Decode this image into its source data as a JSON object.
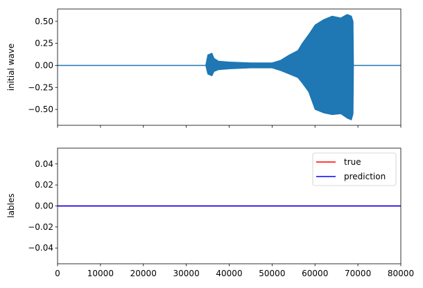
{
  "chart_data": [
    {
      "type": "line",
      "ylabel": "initial wave",
      "xlabel": "",
      "xlim": [
        0,
        80000
      ],
      "ylim": [
        -0.68,
        0.64
      ],
      "yticks": [
        0.5,
        0.25,
        0.0,
        -0.25,
        -0.5
      ],
      "ytick_labels": [
        "0.50",
        "0.25",
        "0.00",
        "−0.25",
        "−0.50"
      ],
      "show_xtick_labels": false,
      "grid": false,
      "series": [
        {
          "color": "#1f77b4",
          "envelope": {
            "x": [
              0,
              34500,
              35000,
              36000,
              36500,
              37500,
              40000,
              45000,
              50000,
              52000,
              54000,
              56000,
              57000,
              58500,
              60000,
              62000,
              64000,
              66000,
              67500,
              68500,
              68900,
              69000,
              80000
            ],
            "ymax": [
              0.0,
              0.0,
              0.12,
              0.14,
              0.08,
              0.05,
              0.04,
              0.03,
              0.03,
              0.06,
              0.12,
              0.17,
              0.25,
              0.35,
              0.46,
              0.52,
              0.56,
              0.54,
              0.58,
              0.56,
              0.5,
              0.0,
              0.0
            ],
            "ymin": [
              0.0,
              0.0,
              -0.1,
              -0.12,
              -0.07,
              -0.05,
              -0.04,
              -0.03,
              -0.03,
              -0.06,
              -0.1,
              -0.14,
              -0.2,
              -0.3,
              -0.5,
              -0.54,
              -0.56,
              -0.55,
              -0.6,
              -0.62,
              -0.55,
              0.0,
              0.0
            ]
          }
        }
      ]
    },
    {
      "type": "line",
      "ylabel": "lables",
      "xlabel": "",
      "xlim": [
        0,
        80000
      ],
      "ylim": [
        -0.055,
        0.055
      ],
      "xticks": [
        0,
        10000,
        20000,
        30000,
        40000,
        50000,
        60000,
        70000,
        80000
      ],
      "xtick_labels": [
        "0",
        "10000",
        "20000",
        "30000",
        "40000",
        "50000",
        "60000",
        "70000",
        "80000"
      ],
      "yticks": [
        0.04,
        0.02,
        0.0,
        -0.02,
        -0.04
      ],
      "ytick_labels": [
        "0.04",
        "0.02",
        "0.00",
        "−0.02",
        "−0.04"
      ],
      "grid": false,
      "legend_position": "top-right",
      "series": [
        {
          "name": "true",
          "color": "#ff0000",
          "x": [
            0,
            80000
          ],
          "y": [
            0,
            0
          ]
        },
        {
          "name": "prediction",
          "color": "#0000ff",
          "x": [
            0,
            80000
          ],
          "y": [
            0,
            0
          ]
        }
      ]
    }
  ]
}
